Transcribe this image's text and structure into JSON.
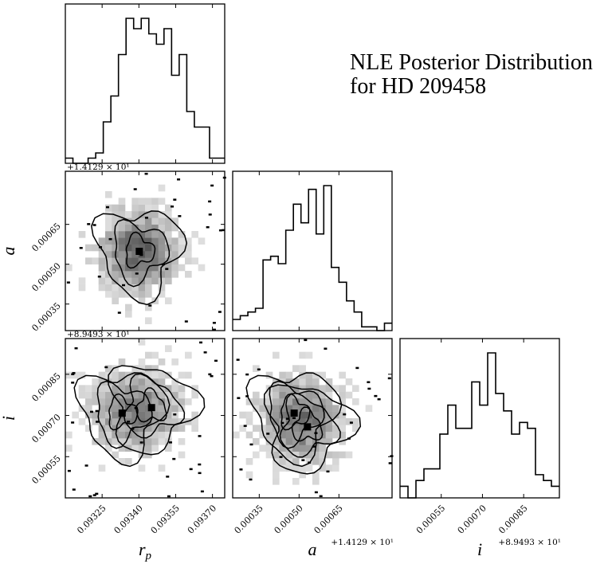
{
  "chart_data": {
    "type": "corner",
    "title_lines": [
      "NLE Posterior Distribution",
      "for HD 209458"
    ],
    "parameters": [
      {
        "symbol": "r",
        "subscript": "p",
        "range": [
          0.0931,
          0.09375
        ],
        "ticks": [
          "0.09325",
          "0.09340",
          "0.09355",
          "0.09370"
        ],
        "tick_values": [
          0.09325,
          0.0934,
          0.09355,
          0.0937
        ],
        "offset_label": ""
      },
      {
        "symbol": "a",
        "subscript": "",
        "range": [
          0.00025,
          0.00085
        ],
        "ticks": [
          "0.00035",
          "0.00050",
          "0.00065"
        ],
        "tick_values": [
          0.00035,
          0.0005,
          0.00065
        ],
        "offset_label": "+1.4129 × 10¹"
      },
      {
        "symbol": "i",
        "subscript": "",
        "range": [
          0.0004,
          0.00098
        ],
        "ticks": [
          "0.00055",
          "0.00070",
          "0.00085"
        ],
        "tick_values": [
          0.00055,
          0.0007,
          0.00085
        ],
        "offset_label": "+8.9493 × 10¹"
      }
    ],
    "histograms": [
      {
        "param": "r_p",
        "bin_start": 0.0931,
        "bin_end": 0.09375,
        "counts": [
          1,
          0,
          0,
          1,
          2,
          8,
          13,
          21,
          28,
          26,
          28,
          25,
          23,
          26,
          17,
          21,
          10,
          7,
          7,
          1,
          1
        ]
      },
      {
        "param": "a",
        "bin_start": 0.00025,
        "bin_end": 0.00085,
        "counts": [
          3,
          4,
          5,
          6,
          19,
          20,
          18,
          27,
          34,
          29,
          38,
          26,
          39,
          17,
          13,
          8,
          5,
          1,
          1,
          0,
          2
        ]
      },
      {
        "param": "i",
        "bin_start": 0.0004,
        "bin_end": 0.00098,
        "counts": [
          2,
          0,
          3,
          5,
          5,
          11,
          16,
          12,
          12,
          20,
          16,
          25,
          18,
          15,
          11,
          13,
          12,
          4,
          3,
          2
        ]
      }
    ],
    "contour_panels": [
      {
        "x_param": "r_p",
        "y_param": "a"
      },
      {
        "x_param": "r_p",
        "y_param": "i"
      },
      {
        "x_param": "a",
        "y_param": "i"
      }
    ],
    "grid": false,
    "legend": "none"
  }
}
